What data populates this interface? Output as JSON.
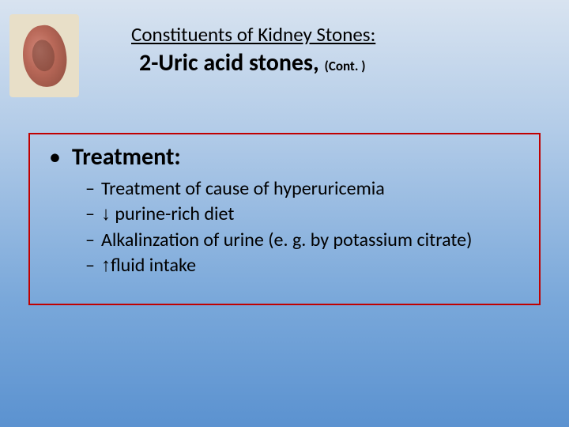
{
  "header": {
    "title": "Constituents of Kidney Stones:",
    "subtitle_main": "2-Uric acid stones,",
    "subtitle_cont": "(Cont. )"
  },
  "content": {
    "heading": "Treatment:",
    "items": {
      "i0": "Treatment of cause of hyperuricemia",
      "i1_prefix": "↓",
      "i1_text": " purine-rich diet",
      "i2": "Alkalinzation of urine (e. g. by potassium citrate)",
      "i3_prefix": "↑",
      "i3_text": "fluid intake"
    }
  },
  "styling": {
    "border_color": "#c00000",
    "background_gradient_top": "#d8e3f0",
    "background_gradient_bottom": "#5b92d0",
    "title_fontsize": 25,
    "subtitle_fontsize": 30,
    "heading_fontsize": 30,
    "item_fontsize": 24
  }
}
